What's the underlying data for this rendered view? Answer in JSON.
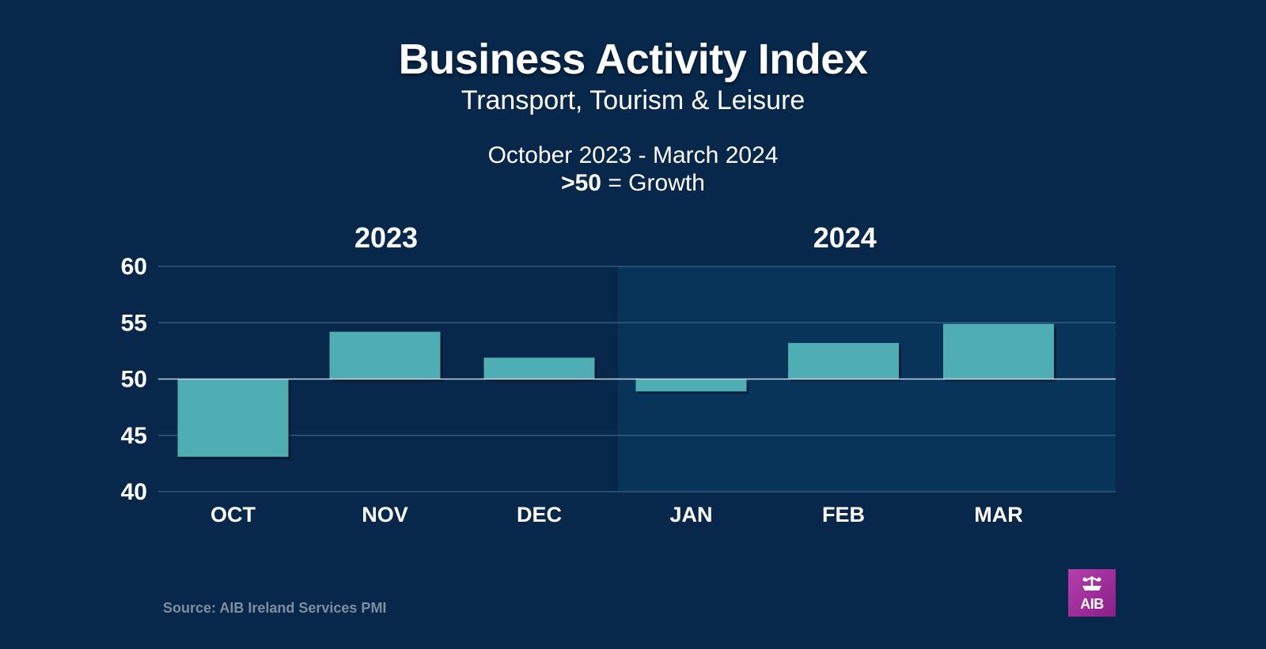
{
  "header": {
    "title": "Business Activity Index",
    "subtitle": "Transport, Tourism & Leisure",
    "period": "October 2023 - March 2024",
    "growth_threshold": ">50",
    "growth_text": "= Growth"
  },
  "source": "Source: AIB Ireland Services PMI",
  "logo": {
    "text": "AIB",
    "icon": "aib-ark-icon"
  },
  "colors": {
    "background": "#07284a",
    "highlight_panel": "#093459",
    "bar": "#4fadb4",
    "gridline": "#3c6282",
    "baseline": "#c6d5e2",
    "logo": "#a12e9e"
  },
  "chart_data": {
    "type": "bar",
    "baseline": 50,
    "ylim": [
      40,
      60
    ],
    "yticks": [
      40,
      45,
      50,
      55,
      60
    ],
    "grid": true,
    "groups": [
      {
        "label": "2023",
        "categories": [
          "OCT",
          "NOV",
          "DEC"
        ],
        "highlight": false
      },
      {
        "label": "2024",
        "categories": [
          "JAN",
          "FEB",
          "MAR"
        ],
        "highlight": true
      }
    ],
    "categories": [
      "OCT",
      "NOV",
      "DEC",
      "JAN",
      "FEB",
      "MAR"
    ],
    "values": [
      43.1,
      54.2,
      51.9,
      48.9,
      53.2,
      54.9
    ]
  }
}
